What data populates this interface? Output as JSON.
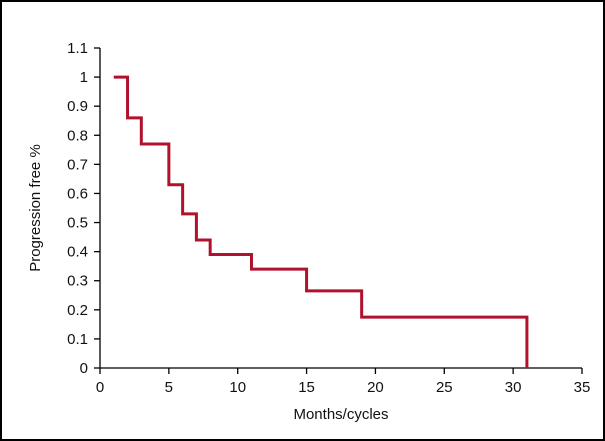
{
  "chart_data": {
    "type": "line",
    "step": true,
    "title": "",
    "xlabel": "Months/cycles",
    "ylabel": "Progression free %",
    "xlim": [
      0,
      35
    ],
    "ylim": [
      0,
      1.1
    ],
    "x_ticks": [
      0,
      5,
      10,
      15,
      20,
      25,
      30,
      35
    ],
    "x_tick_labels": [
      "0",
      "5",
      "10",
      "15",
      "20",
      "25",
      "30",
      "35"
    ],
    "y_ticks": [
      0,
      0.1,
      0.2,
      0.3,
      0.4,
      0.5,
      0.6,
      0.7,
      0.8,
      0.9,
      1,
      1.1
    ],
    "y_tick_labels": [
      "0",
      "0.1",
      "0.2",
      "0.3",
      "0.4",
      "0.5",
      "0.6",
      "0.7",
      "0.8",
      "0.9",
      "1",
      "1.1"
    ],
    "grid": false,
    "line_color": "#b0122e",
    "axis_color": "#000000",
    "series": [
      {
        "x": [
          1,
          2,
          3,
          5,
          6,
          7,
          8,
          11,
          15,
          19,
          31,
          31
        ],
        "y": [
          1,
          0.86,
          0.77,
          0.63,
          0.53,
          0.44,
          0.39,
          0.34,
          0.265,
          0.175,
          0.175,
          0
        ]
      }
    ]
  }
}
